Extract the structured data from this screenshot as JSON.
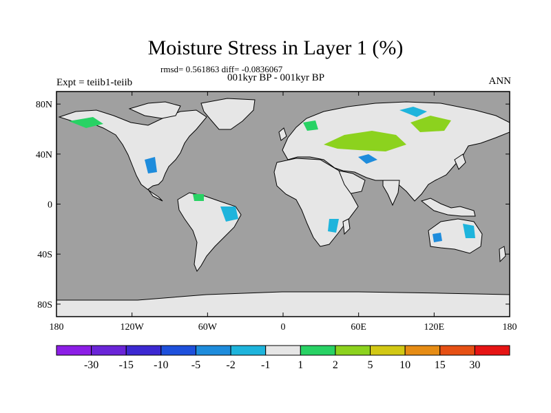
{
  "title": "Moisture Stress in Layer 1 (%)",
  "stats_line": "rmsd= 0.561863 diff= -0.0836067",
  "period_line": "001kyr BP - 001kyr BP",
  "experiment_label": "Expt = teiib1-teiib",
  "season_label": "ANN",
  "map": {
    "projection": "cylindrical-equidistant",
    "ocean_color": "#a0a0a0",
    "land_color": "#e6e6e6",
    "lon_ticks": [
      "180",
      "120W",
      "60W",
      "0",
      "60E",
      "120E",
      "180"
    ],
    "lat_ticks": [
      "80N",
      "40N",
      "0",
      "40S",
      "80S"
    ]
  },
  "colorbar": {
    "labels": [
      "-30",
      "-15",
      "-10",
      "-5",
      "-2",
      "-1",
      "1",
      "2",
      "5",
      "10",
      "15",
      "30"
    ],
    "colors": [
      "#8c1ee6",
      "#6a24d8",
      "#3c28d2",
      "#1e50dc",
      "#1e8cdc",
      "#1eb4dc",
      "#e6e6e6",
      "#28d264",
      "#8cd21e",
      "#d2c814",
      "#e68c14",
      "#e65014",
      "#e61414"
    ]
  }
}
